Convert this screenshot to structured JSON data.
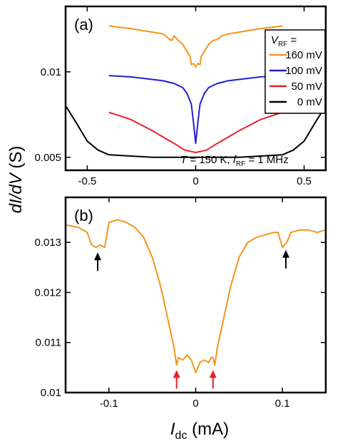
{
  "chart_data": [
    {
      "type": "line",
      "panel_label": "(a)",
      "xlim": [
        -0.6,
        0.6
      ],
      "ylim": [
        0.0045,
        0.017
      ],
      "y_scale": "log",
      "x_ticks": [
        -0.5,
        0,
        0.5
      ],
      "x_tick_labels": [
        "-0.5",
        "0",
        "0.5"
      ],
      "y_ticks": [
        0.005,
        0.01
      ],
      "y_tick_labels": [
        "0.005",
        "0.01"
      ],
      "legend_title": "V",
      "legend_title_sub": "RF",
      "legend_title_suffix": " =",
      "legend_position": "top-right",
      "annotation": {
        "T_symbol": "T",
        "T_value": " = 150 K, ",
        "f_symbol": "f",
        "f_sub": "RF",
        "f_value": " = 1 MHz"
      },
      "series": [
        {
          "name": "160 mV",
          "color": "#F7941D",
          "x": [
            -0.4,
            -0.3,
            -0.2,
            -0.15,
            -0.12,
            -0.11,
            -0.1,
            -0.08,
            -0.06,
            -0.04,
            -0.025,
            -0.02,
            -0.01,
            0,
            0.01,
            0.02,
            0.025,
            0.04,
            0.06,
            0.08,
            0.1,
            0.11,
            0.12,
            0.15,
            0.2,
            0.3,
            0.4
          ],
          "y": [
            0.0145,
            0.0142,
            0.0138,
            0.0136,
            0.013,
            0.0129,
            0.0134,
            0.0129,
            0.0125,
            0.0118,
            0.0113,
            0.0106,
            0.0107,
            0.0104,
            0.0107,
            0.0106,
            0.0113,
            0.0118,
            0.0125,
            0.0129,
            0.013,
            0.0132,
            0.0134,
            0.0136,
            0.0138,
            0.0142,
            0.0145
          ]
        },
        {
          "name": "100 mV",
          "color": "#1F1FD6",
          "x": [
            -0.4,
            -0.3,
            -0.2,
            -0.15,
            -0.1,
            -0.06,
            -0.04,
            -0.02,
            -0.01,
            0,
            0.01,
            0.02,
            0.04,
            0.06,
            0.1,
            0.15,
            0.2,
            0.3,
            0.4
          ],
          "y": [
            0.0097,
            0.0096,
            0.0094,
            0.0093,
            0.0091,
            0.0088,
            0.0084,
            0.0077,
            0.0066,
            0.0056,
            0.0066,
            0.0077,
            0.0084,
            0.0088,
            0.0091,
            0.0093,
            0.0094,
            0.0096,
            0.0097
          ]
        },
        {
          "name": "50 mV",
          "color": "#E8202A",
          "x": [
            -0.4,
            -0.3,
            -0.2,
            -0.1,
            -0.05,
            0,
            0.05,
            0.1,
            0.2,
            0.3,
            0.4
          ],
          "y": [
            0.0072,
            0.0068,
            0.0062,
            0.0056,
            0.0053,
            0.0052,
            0.0053,
            0.0056,
            0.0062,
            0.0068,
            0.0072
          ]
        },
        {
          "name": "0 mV",
          "color": "#000000",
          "x": [
            -0.6,
            -0.55,
            -0.5,
            -0.45,
            -0.4,
            -0.3,
            -0.2,
            -0.1,
            0,
            0.1,
            0.2,
            0.3,
            0.4,
            0.45,
            0.5,
            0.55,
            0.6
          ],
          "y": [
            0.0076,
            0.0066,
            0.0057,
            0.0053,
            0.0051,
            0.00505,
            0.005,
            0.005,
            0.005,
            0.005,
            0.005,
            0.00505,
            0.0051,
            0.0053,
            0.0057,
            0.0066,
            0.0076
          ]
        }
      ]
    },
    {
      "type": "line",
      "panel_label": "(b)",
      "xlim": [
        -0.15,
        0.15
      ],
      "ylim": [
        0.01,
        0.0139
      ],
      "x_ticks": [
        -0.1,
        0,
        0.1
      ],
      "x_tick_labels": [
        "-0.1",
        "0",
        "0.1"
      ],
      "y_ticks": [
        0.01,
        0.011,
        0.012,
        0.013
      ],
      "y_tick_labels": [
        "0.01",
        "0.011",
        "0.012",
        "0.013"
      ],
      "series": [
        {
          "color": "#F7941D",
          "x": [
            -0.15,
            -0.135,
            -0.125,
            -0.12,
            -0.115,
            -0.11,
            -0.105,
            -0.1,
            -0.09,
            -0.08,
            -0.07,
            -0.06,
            -0.05,
            -0.04,
            -0.035,
            -0.03,
            -0.025,
            -0.022,
            -0.02,
            -0.015,
            -0.01,
            -0.005,
            0,
            0.005,
            0.01,
            0.015,
            0.018,
            0.02,
            0.022,
            0.025,
            0.03,
            0.04,
            0.05,
            0.06,
            0.07,
            0.08,
            0.09,
            0.095,
            0.1,
            0.105,
            0.11,
            0.12,
            0.13,
            0.14,
            0.15
          ],
          "y": [
            0.01335,
            0.0133,
            0.0132,
            0.01295,
            0.0129,
            0.01295,
            0.0129,
            0.0134,
            0.01345,
            0.0134,
            0.0133,
            0.0131,
            0.0127,
            0.0121,
            0.0117,
            0.0113,
            0.0109,
            0.01055,
            0.0107,
            0.01065,
            0.01075,
            0.01065,
            0.0104,
            0.0106,
            0.01065,
            0.0106,
            0.0107,
            0.0107,
            0.01055,
            0.0109,
            0.0113,
            0.0121,
            0.0127,
            0.013,
            0.0131,
            0.01315,
            0.0132,
            0.0132,
            0.0129,
            0.013,
            0.0132,
            0.01325,
            0.01325,
            0.0132,
            0.01325
          ]
        }
      ],
      "arrows": [
        {
          "x": -0.113,
          "y": 0.0128,
          "color": "#000000"
        },
        {
          "x": 0.104,
          "y": 0.01285,
          "color": "#000000"
        },
        {
          "x": -0.022,
          "y": 0.01045,
          "color": "#E8202A"
        },
        {
          "x": 0.02,
          "y": 0.01045,
          "color": "#E8202A"
        }
      ]
    }
  ],
  "shared_ylabel": {
    "italic": "dI/dV",
    "rest": " (S)"
  },
  "shared_xlabel": {
    "italic": "I",
    "sub": "dc",
    "rest": " (mA)"
  }
}
